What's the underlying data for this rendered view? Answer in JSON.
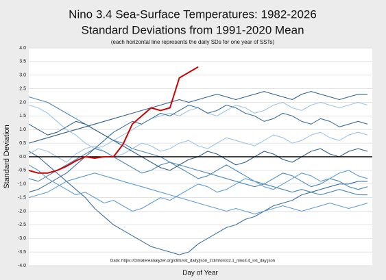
{
  "chart_data": {
    "type": "line",
    "title": "Nino 3.4 Sea-Surface Temperatures: 1982-2026",
    "subtitle": "Standard Deviations from 1991-2020 Mean",
    "note": "(each horizontal line represents the daily SDs for one year of SSTs)",
    "source": "Data: https://climatereanalyzer.org/clim/sst_daily/json_2clim/oisst2.1_nino3.4_sst_day.json",
    "x_label": "Day of Year",
    "y_label": "Standard Deviation",
    "xlim": [
      1,
      366
    ],
    "ylim": [
      -4,
      4
    ],
    "yticks": [
      {
        "value": 4,
        "label": "4.0"
      },
      3.5,
      {
        "value": 3,
        "label": "3.0"
      },
      2.5,
      {
        "value": 2,
        "label": "2.0"
      },
      1.5,
      {
        "value": 1,
        "label": "1.0"
      },
      0.5,
      {
        "value": 0,
        "label": "0.0"
      },
      -0.5,
      {
        "value": -1,
        "label": "-1.0"
      },
      -1.5,
      {
        "value": -2,
        "label": "-2.0"
      },
      -2.5,
      {
        "value": -3,
        "label": "-3.0"
      },
      -3.5,
      {
        "value": -4,
        "label": "-4.0"
      }
    ],
    "grid": true,
    "x": [
      1,
      11,
      21,
      31,
      41,
      51,
      61,
      71,
      81,
      91,
      101,
      111,
      121,
      131,
      141,
      151,
      161,
      171,
      181,
      191,
      201,
      211,
      221,
      231,
      241,
      251,
      261,
      271,
      281,
      291,
      301,
      311,
      321,
      331,
      341,
      351,
      361
    ],
    "series": [
      {
        "color": "#2e5f8a",
        "values": [
          0.5,
          0.6,
          0.7,
          0.8,
          0.9,
          1.0,
          1.1,
          1.2,
          1.3,
          1.4,
          1.5,
          1.6,
          1.7,
          1.8,
          1.9,
          2.0,
          2.1,
          2.0,
          2.1,
          2.2,
          2.3,
          2.2,
          2.1,
          2.2,
          2.3,
          2.4,
          2.3,
          2.2,
          2.1,
          2.3,
          2.4,
          2.3,
          2.2,
          2.1,
          2.2,
          2.3,
          2.3
        ]
      },
      {
        "color": "#4a86b8",
        "values": [
          2.2,
          2.1,
          2.0,
          1.8,
          1.6,
          1.4,
          1.2,
          1.0,
          0.8,
          0.6,
          0.5,
          0.3,
          0.2,
          0.1,
          0.0,
          -0.2,
          -0.3,
          -0.4,
          -0.5,
          -0.6,
          -0.7,
          -0.8,
          -0.9,
          -1.0,
          -1.1,
          -1.0,
          -1.1,
          -1.2,
          -1.3,
          -1.2,
          -1.3,
          -1.4,
          -1.3,
          -1.2,
          -1.3,
          -1.4,
          -1.4
        ]
      },
      {
        "color": "#3a6f9f",
        "values": [
          0.2,
          0.0,
          -0.3,
          -0.6,
          -0.9,
          -1.2,
          -1.5,
          -1.9,
          -2.2,
          -2.5,
          -2.7,
          -2.9,
          -3.1,
          -3.3,
          -3.4,
          -3.5,
          -3.6,
          -3.5,
          -3.2,
          -3.0,
          -2.8,
          -2.6,
          -2.5,
          -2.3,
          -2.2,
          -2.0,
          -1.8,
          -1.7,
          -1.6,
          -1.4,
          -1.3,
          -1.2,
          -1.1,
          -1.0,
          -1.0,
          -0.9,
          -0.9
        ]
      },
      {
        "color": "#5b9bd5",
        "values": [
          -1.5,
          -1.4,
          -1.3,
          -1.1,
          -0.9,
          -0.8,
          -0.7,
          -0.6,
          -0.7,
          -0.8,
          -0.9,
          -1.0,
          -1.1,
          -1.2,
          -1.3,
          -1.4,
          -1.5,
          -1.6,
          -1.7,
          -1.8,
          -1.9,
          -2.0,
          -1.9,
          -2.0,
          -2.1,
          -2.0,
          -1.9,
          -1.8,
          -1.9,
          -2.0,
          -1.9,
          -1.8,
          -1.7,
          -1.8,
          -1.9,
          -1.8,
          -1.7
        ]
      },
      {
        "color": "#9dc3e6",
        "values": [
          0.1,
          0.3,
          0.2,
          0.0,
          -0.2,
          0.1,
          0.3,
          0.4,
          0.2,
          0.0,
          0.1,
          0.3,
          0.5,
          0.4,
          0.2,
          0.3,
          0.5,
          0.6,
          0.4,
          0.3,
          0.5,
          0.7,
          0.6,
          0.5,
          0.4,
          0.6,
          0.8,
          0.7,
          0.5,
          0.6,
          0.8,
          0.9,
          0.7,
          0.6,
          0.8,
          0.9,
          0.8
        ]
      },
      {
        "color": "#9dc3e6",
        "values": [
          1.9,
          1.8,
          1.6,
          1.3,
          1.0,
          0.8,
          0.5,
          0.3,
          0.4,
          0.6,
          0.8,
          1.0,
          1.2,
          1.4,
          1.5,
          1.6,
          1.5,
          1.7,
          1.8,
          1.6,
          1.5,
          1.7,
          1.9,
          1.8,
          1.6,
          1.7,
          1.9,
          2.0,
          1.8,
          1.7,
          1.9,
          2.0,
          1.9,
          1.8,
          1.9,
          2.0,
          1.9
        ]
      },
      {
        "color": "#4a86b8",
        "values": [
          -0.8,
          -0.9,
          -0.7,
          -0.5,
          -0.3,
          -0.1,
          0.1,
          0.3,
          0.2,
          0.0,
          -0.2,
          -0.4,
          -0.6,
          -0.5,
          -0.3,
          -0.2,
          -0.4,
          -0.6,
          -0.8,
          -0.7,
          -0.5,
          -0.3,
          -0.5,
          -0.7,
          -0.9,
          -1.0,
          -0.8,
          -0.6,
          -0.7,
          -0.9,
          -1.1,
          -1.0,
          -0.8,
          -0.9,
          -1.1,
          -1.2,
          -1.1
        ]
      },
      {
        "color": "#2e5f8a",
        "values": [
          1.2,
          1.0,
          0.8,
          0.9,
          1.1,
          1.3,
          1.2,
          1.0,
          0.8,
          0.6,
          0.4,
          0.2,
          0.0,
          -0.2,
          -0.4,
          -0.5,
          -0.3,
          -0.1,
          0.0,
          0.2,
          0.1,
          -0.1,
          -0.3,
          -0.2,
          0.0,
          0.2,
          0.1,
          -0.1,
          -0.2,
          0.0,
          0.2,
          0.3,
          0.1,
          0.0,
          0.2,
          0.3,
          0.2
        ]
      },
      {
        "color": "#3a6f9f",
        "values": [
          -1.3,
          -1.2,
          -1.0,
          -0.8,
          -0.6,
          -0.3,
          0.0,
          0.3,
          0.6,
          0.9,
          1.1,
          1.3,
          1.2,
          1.4,
          1.6,
          1.5,
          1.7,
          1.9,
          1.8,
          1.6,
          1.7,
          1.9,
          1.8,
          1.6,
          1.5,
          1.3,
          1.4,
          1.6,
          1.5,
          1.3,
          1.2,
          1.4,
          1.3,
          1.1,
          1.2,
          1.3,
          1.2
        ]
      },
      {
        "color": "#5b9bd5",
        "values": [
          -0.3,
          -0.5,
          -0.8,
          -1.0,
          -1.2,
          -1.4,
          -1.3,
          -1.5,
          -1.7,
          -1.6,
          -1.8,
          -2.0,
          -1.9,
          -1.7,
          -1.5,
          -1.6,
          -1.4,
          -1.2,
          -1.0,
          -1.1,
          -1.3,
          -1.2,
          -1.0,
          -0.8,
          -0.9,
          -1.1,
          -1.2,
          -1.0,
          -0.8,
          -0.6,
          -0.7,
          -0.9,
          -0.8,
          -0.6,
          -0.5,
          -0.7,
          -0.8
        ]
      },
      {
        "color": "#cc0000",
        "values": [
          -0.5,
          -0.6,
          -0.6,
          -0.5,
          -0.35,
          -0.15,
          0.0,
          -0.05,
          0.0,
          0.0,
          0.45,
          1.2,
          1.5,
          1.8,
          1.7,
          1.8,
          2.9,
          3.1,
          3.3,
          null,
          null,
          null,
          null,
          null,
          null,
          null,
          null,
          null,
          null,
          null,
          null,
          null,
          null,
          null,
          null,
          null,
          null
        ]
      }
    ]
  }
}
